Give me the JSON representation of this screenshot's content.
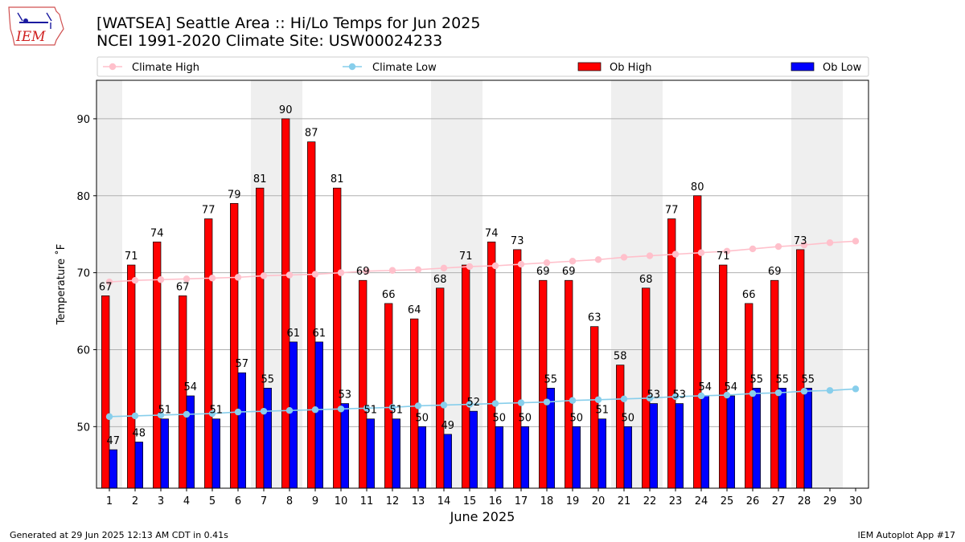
{
  "header": {
    "logo_text": "IEM",
    "title_line1": "[WATSEA] Seattle Area :: Hi/Lo Temps for Jun 2025",
    "title_line2": "NCEI 1991-2020 Climate Site: USW00024233"
  },
  "footer": {
    "left": "Generated at 29 Jun 2025 12:13 AM CDT in 0.41s",
    "right": "IEM Autoplot App #17"
  },
  "colors": {
    "ob_high": "#ff0000",
    "ob_low": "#0000ff",
    "climate_high": "#ffc0cb",
    "climate_low": "#87ceeb",
    "weekend_shade": "#efefef",
    "grid": "#b0b0b0"
  },
  "chart_data": {
    "type": "bar",
    "xlabel": "June 2025",
    "ylabel": "Temperature ˚F",
    "ylim": [
      42,
      95
    ],
    "yticks": [
      50,
      60,
      70,
      80,
      90
    ],
    "grid": "horizontal",
    "legend_position": "top",
    "categories": [
      "1",
      "2",
      "3",
      "4",
      "5",
      "6",
      "7",
      "8",
      "9",
      "10",
      "11",
      "12",
      "13",
      "14",
      "15",
      "16",
      "17",
      "18",
      "19",
      "20",
      "21",
      "22",
      "23",
      "24",
      "25",
      "26",
      "27",
      "28",
      "29",
      "30"
    ],
    "shaded_days": [
      [
        1,
        1
      ],
      [
        7,
        8
      ],
      [
        14,
        15
      ],
      [
        21,
        22
      ],
      [
        28,
        29
      ]
    ],
    "series": [
      {
        "name": "Ob High",
        "kind": "bar",
        "color": "#ff0000",
        "values": [
          67,
          71,
          74,
          67,
          77,
          79,
          81,
          90,
          87,
          81,
          69,
          66,
          64,
          68,
          71,
          74,
          73,
          69,
          69,
          63,
          58,
          68,
          77,
          80,
          71,
          66,
          69,
          73,
          null,
          null
        ]
      },
      {
        "name": "Ob Low",
        "kind": "bar",
        "color": "#0000ff",
        "values": [
          47,
          48,
          51,
          54,
          51,
          57,
          55,
          61,
          61,
          53,
          51,
          51,
          50,
          49,
          52,
          50,
          50,
          55,
          50,
          51,
          50,
          53,
          53,
          54,
          54,
          55,
          55,
          55,
          null,
          null
        ]
      },
      {
        "name": "Climate High",
        "kind": "line",
        "color": "#ffc0cb",
        "values": [
          68.8,
          69.0,
          69.1,
          69.2,
          69.3,
          69.4,
          69.6,
          69.7,
          69.8,
          70.0,
          70.2,
          70.3,
          70.4,
          70.6,
          70.8,
          70.9,
          71.1,
          71.3,
          71.5,
          71.7,
          72.0,
          72.2,
          72.4,
          72.6,
          72.8,
          73.1,
          73.4,
          73.6,
          73.9,
          74.1
        ]
      },
      {
        "name": "Climate Low",
        "kind": "line",
        "color": "#87ceeb",
        "values": [
          51.3,
          51.4,
          51.5,
          51.6,
          51.7,
          51.9,
          52.0,
          52.1,
          52.2,
          52.3,
          52.4,
          52.5,
          52.7,
          52.8,
          52.9,
          53.0,
          53.1,
          53.2,
          53.4,
          53.5,
          53.6,
          53.7,
          53.9,
          54.0,
          54.1,
          54.3,
          54.4,
          54.6,
          54.7,
          54.9
        ]
      }
    ]
  }
}
